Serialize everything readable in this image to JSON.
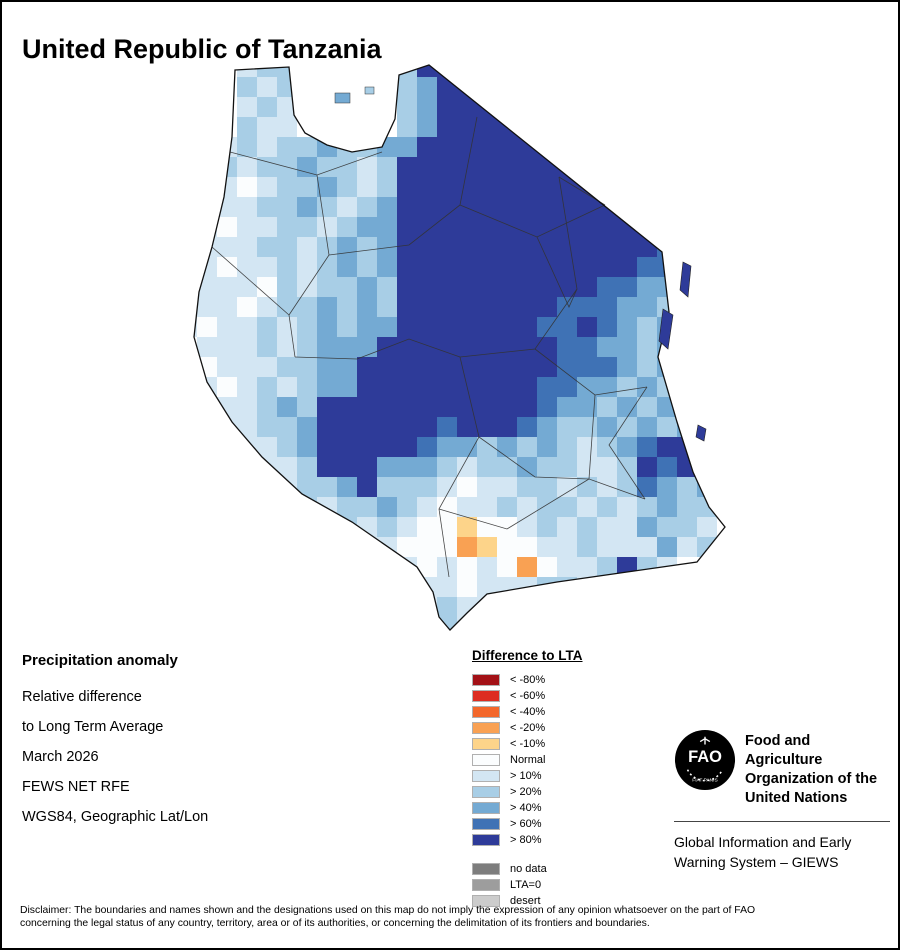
{
  "title": "United Republic of Tanzania",
  "info_block": {
    "heading": "Precipitation anomaly",
    "lines": [
      "Relative difference",
      "to Long Term Average",
      "March 2026",
      "FEWS NET RFE",
      "WGS84, Geographic Lat/Lon"
    ]
  },
  "legend": {
    "title": "Difference to LTA",
    "entries": [
      {
        "label": "< -80%",
        "color": "#a31116"
      },
      {
        "label": "< -60%",
        "color": "#dd2c20"
      },
      {
        "label": "< -40%",
        "color": "#f3672b"
      },
      {
        "label": "< -20%",
        "color": "#f9a153"
      },
      {
        "label": "< -10%",
        "color": "#fdd48a"
      },
      {
        "label": "Normal",
        "color": "#fbfdfe"
      },
      {
        "label": "> 10%",
        "color": "#d3e6f3"
      },
      {
        "label": "> 20%",
        "color": "#a8cee6"
      },
      {
        "label": "> 40%",
        "color": "#74aad3"
      },
      {
        "label": "> 60%",
        "color": "#3f72b5"
      },
      {
        "label": "> 80%",
        "color": "#2e3b99"
      }
    ],
    "extra_entries": [
      {
        "label": "no data",
        "color": "#7d7d7d"
      },
      {
        "label": "LTA=0",
        "color": "#9d9d9d"
      },
      {
        "label": "desert",
        "color": "#cccccc"
      }
    ]
  },
  "fao": {
    "logo_text": "FAO",
    "logo_motto": "FIAT PANIS",
    "org_lines": [
      "Food and Agriculture",
      "Organization of the",
      "United Nations"
    ],
    "giews_lines": [
      "Global Information and Early",
      "Warning System – GIEWS"
    ]
  },
  "disclaimer_lines": [
    "Disclaimer: The boundaries and names shown and the designations used on this map do not imply the expression of any opinion whatsoever on the part of FAO",
    "concerning the legal status of any country, territory, area or of its authorities, or concerning the delimitation of its frontiers and boundaries."
  ],
  "map": {
    "cell_size": 20,
    "palette": {
      "w": "#fbfdfe",
      "1": "#d3e6f3",
      "2": "#a8cee6",
      "3": "#74aad3",
      "4": "#3f72b5",
      "5": "#2e3b99",
      "y": "#fdd48a",
      "o": "#f9a153"
    },
    "grid": [
      "...122.....2555.............",
      "...212.....235555...........",
      "...121.....2355555..........",
      "...211.32..23555555.........",
      "..121223223355555555........",
      "..21223221255555555554......",
      "..1w1223212555555555554.....",
      ".w1122321235555555555554....",
      ".1w1122123355555555555554...",
      ".111221232355555555555554...",
      ".1w11212323555555555555442..",
      ".111w212232555555555544332..",
      ".11w1223232555555554443322..",
      "1w112123233555555544543232..",
      "w1112123335555555554433232..",
      "1w111223355555555554443232..",
      "11w12123355555555544332323..",
      "11112325555555555543323232..",
      "w1112235555554555432232323..",
      "1w111235555543323232123455..",
      ".w111125553332122322112545..",
      ".....122352221w112212124323.",
      "......2122321w1121221212322.",
      ".......12121wwyww1212113221.",
      "........111wwwoyww112111312.",
      ".........111w1w1wow112521...",
      "..........2111w111221111....",
      "............12112...........",
      ".............21............."
    ]
  }
}
